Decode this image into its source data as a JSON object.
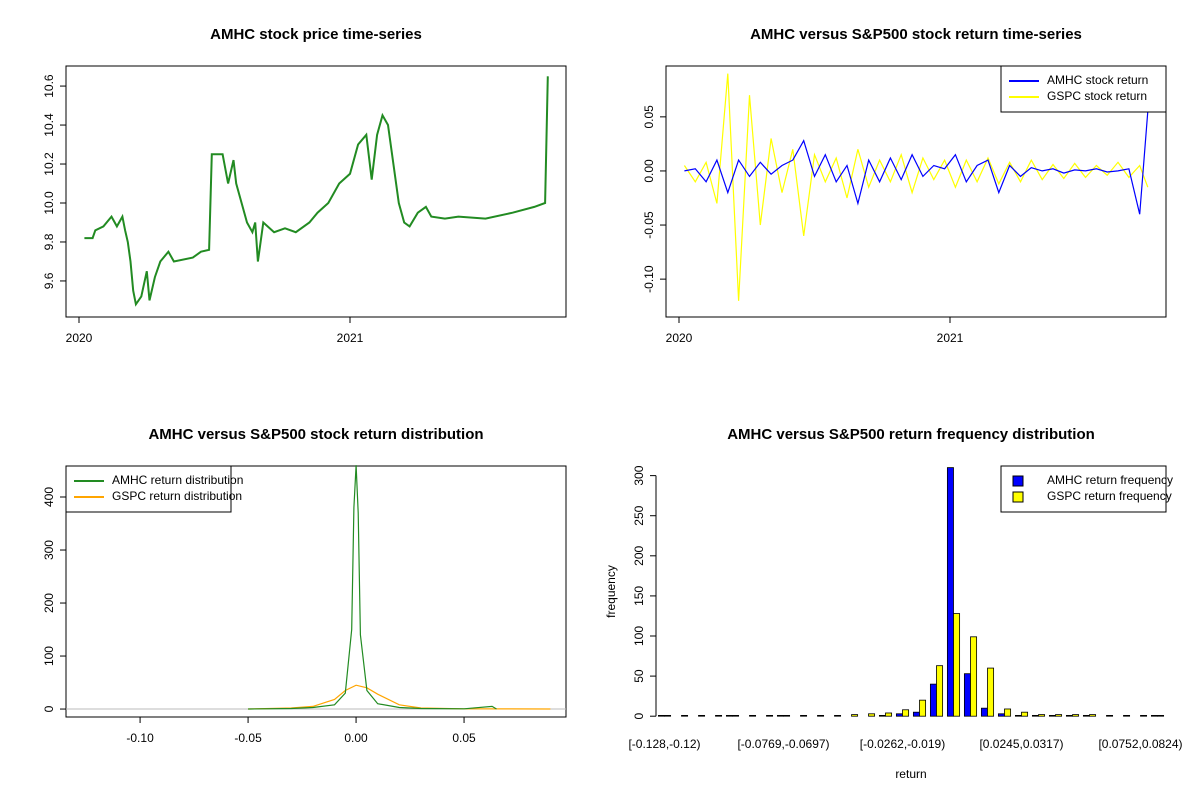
{
  "chart_data": [
    {
      "type": "line",
      "title": "AMHC stock price time-series",
      "x": [
        2020.02,
        2020.05,
        2020.06,
        2020.09,
        2020.12,
        2020.14,
        2020.16,
        2020.17,
        2020.18,
        2020.19,
        2020.2,
        2020.21,
        2020.23,
        2020.25,
        2020.26,
        2020.28,
        2020.3,
        2020.33,
        2020.35,
        2020.42,
        2020.45,
        2020.48,
        2020.49,
        2020.53,
        2020.55,
        2020.57,
        2020.58,
        2020.6,
        2020.62,
        2020.64,
        2020.65,
        2020.66,
        2020.68,
        2020.72,
        2020.76,
        2020.8,
        2020.85,
        2020.88,
        2020.92,
        2020.96,
        2021.0,
        2021.03,
        2021.06,
        2021.08,
        2021.1,
        2021.12,
        2021.14,
        2021.16,
        2021.18,
        2021.2,
        2021.22,
        2021.25,
        2021.28,
        2021.3,
        2021.35,
        2021.4,
        2021.5,
        2021.6,
        2021.68,
        2021.72,
        2021.73
      ],
      "values": [
        9.82,
        9.82,
        9.86,
        9.88,
        9.93,
        9.88,
        9.93,
        9.86,
        9.8,
        9.7,
        9.55,
        9.48,
        9.52,
        9.65,
        9.5,
        9.62,
        9.7,
        9.75,
        9.7,
        9.72,
        9.75,
        9.76,
        10.25,
        10.25,
        10.1,
        10.22,
        10.1,
        10.0,
        9.9,
        9.85,
        9.9,
        9.7,
        9.9,
        9.85,
        9.87,
        9.85,
        9.9,
        9.95,
        10.0,
        10.1,
        10.15,
        10.3,
        10.35,
        10.12,
        10.35,
        10.45,
        10.4,
        10.2,
        10.0,
        9.9,
        9.88,
        9.95,
        9.98,
        9.93,
        9.92,
        9.93,
        9.92,
        9.95,
        9.98,
        10.0,
        10.65
      ],
      "color": "#228b22",
      "xlim": [
        2019.952,
        2021.797
      ],
      "xticks": [
        2020,
        2021
      ],
      "ylim": [
        9.415,
        10.703
      ],
      "yticks": [
        9.6,
        9.8,
        {
          "value": 10,
          "label": "10.0"
        },
        10.2,
        10.4,
        10.6
      ]
    },
    {
      "type": "line",
      "title": "AMHC versus S&P500 stock return time-series",
      "x": [
        2020.02,
        2020.06,
        2020.1,
        2020.14,
        2020.18,
        2020.22,
        2020.26,
        2020.3,
        2020.34,
        2020.38,
        2020.42,
        2020.46,
        2020.5,
        2020.54,
        2020.58,
        2020.62,
        2020.66,
        2020.7,
        2020.74,
        2020.78,
        2020.82,
        2020.86,
        2020.9,
        2020.94,
        2020.98,
        2021.02,
        2021.06,
        2021.1,
        2021.14,
        2021.18,
        2021.22,
        2021.26,
        2021.3,
        2021.34,
        2021.38,
        2021.42,
        2021.46,
        2021.5,
        2021.54,
        2021.58,
        2021.62,
        2021.66,
        2021.7,
        2021.73
      ],
      "series": [
        {
          "name": "GSPC stock return",
          "color": "#ffff00",
          "values": [
            0.005,
            -0.01,
            0.008,
            -0.03,
            0.09,
            -0.12,
            0.07,
            -0.05,
            0.03,
            -0.02,
            0.02,
            -0.06,
            0.015,
            -0.01,
            0.012,
            -0.025,
            0.02,
            -0.015,
            0.01,
            -0.01,
            0.015,
            -0.02,
            0.012,
            -0.008,
            0.01,
            -0.015,
            0.01,
            -0.01,
            0.012,
            -0.012,
            0.008,
            -0.01,
            0.01,
            -0.008,
            0.006,
            -0.007,
            0.007,
            -0.006,
            0.005,
            -0.004,
            0.008,
            -0.006,
            0.005,
            -0.015
          ]
        },
        {
          "name": "AMHC stock return",
          "color": "#0000ff",
          "values": [
            0,
            0.002,
            -0.01,
            0.01,
            -0.02,
            0.01,
            -0.005,
            0.008,
            -0.003,
            0.005,
            0.01,
            0.028,
            -0.005,
            0.015,
            -0.01,
            0.005,
            -0.03,
            0.01,
            -0.01,
            0.012,
            -0.008,
            0.015,
            -0.005,
            0.005,
            0.002,
            0.015,
            -0.01,
            0.005,
            0.01,
            -0.02,
            0.005,
            -0.005,
            0.003,
            0,
            0.002,
            -0.002,
            0.001,
            0,
            0.002,
            -0.001,
            0,
            0.002,
            -0.04,
            0.055
          ]
        }
      ],
      "legend_order": [
        1,
        0
      ],
      "legend": "topright",
      "xlim": [
        2019.952,
        2021.797
      ],
      "xticks": [
        2020,
        2021
      ],
      "ylim": [
        -0.135,
        0.097
      ],
      "yticks": [
        {
          "value": -0.1,
          "label": "-0.10"
        },
        -0.05,
        {
          "value": 0,
          "label": "0.00"
        },
        0.05
      ]
    },
    {
      "type": "line",
      "title": "AMHC versus S&P500 stock return distribution",
      "series": [
        {
          "name": "GSPC return distribution",
          "color": "#ffa500",
          "x": [
            -0.05,
            -0.03,
            -0.02,
            -0.01,
            -0.005,
            0,
            0.005,
            0.01,
            0.02,
            0.03,
            0.05,
            0.09
          ],
          "values": [
            0,
            2,
            5,
            18,
            35,
            45,
            40,
            28,
            8,
            2,
            0.5,
            0
          ]
        },
        {
          "name": "AMHC return distribution",
          "color": "#228b22",
          "x": [
            -0.05,
            -0.03,
            -0.02,
            -0.01,
            -0.005,
            -0.002,
            -0.001,
            0,
            0.001,
            0.002,
            0.005,
            0.01,
            0.02,
            0.03,
            0.05,
            0.063,
            0.065
          ],
          "values": [
            0,
            1,
            3,
            8,
            30,
            150,
            380,
            460,
            370,
            140,
            35,
            10,
            3,
            1,
            0.5,
            5,
            0
          ]
        }
      ],
      "legend_order": [
        1,
        0
      ],
      "legend": "topleft",
      "hline": 0,
      "xlim": [
        -0.1343,
        0.0972
      ],
      "xticks": [
        {
          "value": -0.1,
          "label": "-0.10"
        },
        -0.05,
        {
          "value": 0,
          "label": "0.00"
        },
        0.05
      ],
      "ylim": [
        -15,
        458.5
      ],
      "yticks": [
        0,
        100,
        200,
        300,
        400
      ]
    },
    {
      "type": "bar",
      "title": "AMHC versus S&P500 return frequency distribution",
      "x_label": "return",
      "y_label": "frequency",
      "categories": [
        "[-0.128,-0.12)",
        null,
        null,
        null,
        null,
        null,
        null,
        "[-0.0769,-0.0697)",
        null,
        null,
        null,
        null,
        null,
        null,
        "[-0.0262,-0.019)",
        null,
        null,
        null,
        null,
        null,
        null,
        "[0.0245,0.0317)",
        null,
        null,
        null,
        null,
        null,
        null,
        "[0.0752,0.0824)",
        null
      ],
      "series": [
        {
          "name": "AMHC return frequency",
          "color": "#0000ff",
          "values": [
            1,
            0,
            0,
            0,
            1,
            0,
            0,
            1,
            0,
            0,
            0,
            0,
            0,
            1,
            3,
            5,
            40,
            310,
            53,
            10,
            3,
            1,
            1,
            1,
            1,
            1,
            0,
            0,
            0,
            1
          ]
        },
        {
          "name": "GSPC return frequency",
          "color": "#ffff00",
          "values": [
            1,
            1,
            1,
            1,
            1,
            1,
            1,
            1,
            1,
            1,
            1,
            2,
            3,
            4,
            8,
            20,
            63,
            128,
            99,
            60,
            9,
            5,
            2,
            2,
            2,
            2,
            1,
            1,
            1,
            1
          ]
        }
      ],
      "legend": "topright",
      "ylim": [
        -1,
        312
      ],
      "yticks": [
        0,
        50,
        100,
        150,
        200,
        250,
        300
      ]
    }
  ]
}
